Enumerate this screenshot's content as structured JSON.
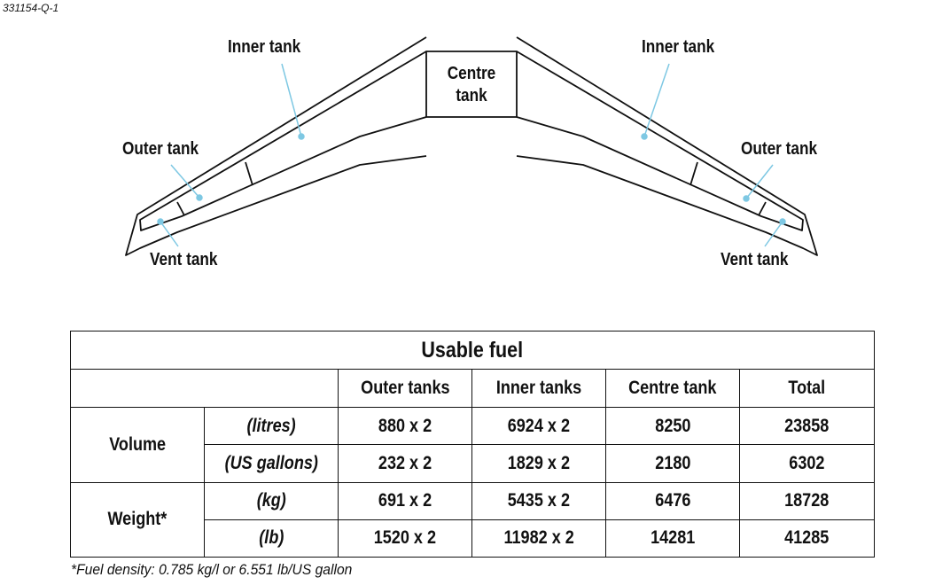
{
  "figure_id": "331154-Q-1",
  "diagram": {
    "labels": {
      "left_inner": "Inner tank",
      "left_outer": "Outer tank",
      "left_vent": "Vent tank",
      "centre_line1": "Centre",
      "centre_line2": "tank",
      "right_inner": "Inner tank",
      "right_outer": "Outer tank",
      "right_vent": "Vent tank"
    },
    "leader_color": "#7ec8e3"
  },
  "table": {
    "title": "Usable fuel",
    "headers": [
      "Outer tanks",
      "Inner tanks",
      "Centre tank",
      "Total"
    ],
    "groups": [
      {
        "name": "Volume",
        "rows": [
          {
            "unit": "(litres)",
            "values": [
              "880 x 2",
              "6924 x 2",
              "8250",
              "23858"
            ]
          },
          {
            "unit": "(US gallons)",
            "values": [
              "232 x 2",
              "1829 x 2",
              "2180",
              "6302"
            ]
          }
        ]
      },
      {
        "name": "Weight*",
        "rows": [
          {
            "unit": "(kg)",
            "values": [
              "691 x 2",
              "5435 x 2",
              "6476",
              "18728"
            ]
          },
          {
            "unit": "(lb)",
            "values": [
              "1520 x 2",
              "11982 x 2",
              "14281",
              "41285"
            ]
          }
        ]
      }
    ]
  },
  "footnote": "*Fuel density: 0.785 kg/l or 6.551 lb/US gallon"
}
